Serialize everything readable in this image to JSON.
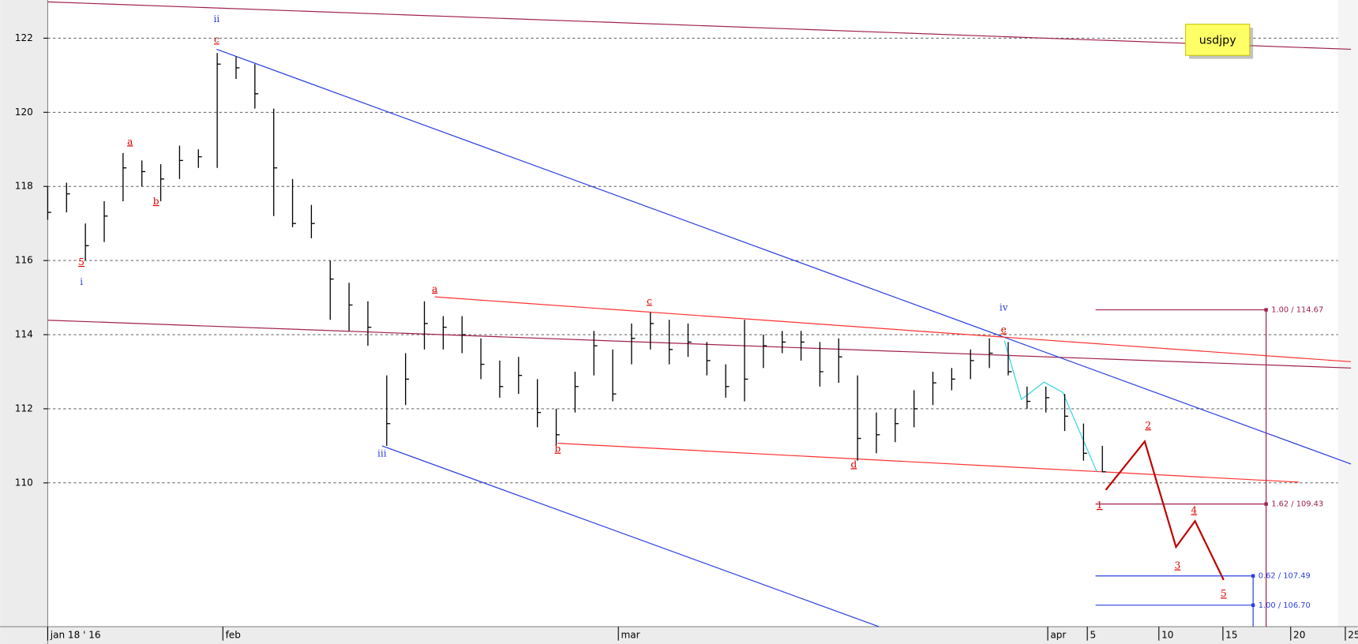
{
  "chart_data": {
    "type": "ohlc",
    "symbol": "usdjpy",
    "ylim": [
      106.12,
      123.03
    ],
    "yticks": [
      110,
      112,
      114,
      116,
      118,
      120,
      122
    ],
    "xlim": [
      0,
      69.2
    ],
    "xticks": [
      {
        "value": 0,
        "label": "jan 18 ' 16"
      },
      {
        "value": 9.3,
        "label": "feb"
      },
      {
        "value": 30.3,
        "label": "mar"
      },
      {
        "value": 53.1,
        "label": "apr"
      },
      {
        "value": 55.2,
        "label": "5"
      },
      {
        "value": 59.0,
        "label": "10"
      },
      {
        "value": 62.4,
        "label": "15"
      },
      {
        "value": 66.0,
        "label": "20"
      },
      {
        "value": 68.9,
        "label": "25"
      }
    ],
    "grid": true,
    "color": "#000000",
    "values": [
      117.3,
      117.8,
      116.4,
      117.2,
      118.5,
      118.4,
      118.2,
      118.7,
      118.8,
      121.3,
      121.2,
      120.5,
      118.5,
      117.0,
      117.0,
      115.5,
      114.8,
      114.2,
      111.6,
      112.8,
      114.3,
      114.2,
      114.0,
      113.2,
      112.6,
      112.9,
      111.9,
      111.3,
      112.6,
      113.7,
      112.4,
      113.9,
      114.3,
      113.6,
      113.8,
      113.3,
      112.6,
      112.8,
      113.7,
      113.8,
      113.8,
      113.0,
      113.4,
      111.2,
      111.3,
      111.6,
      112.0,
      112.7,
      112.8,
      113.3,
      113.5,
      113.0,
      112.2,
      112.3,
      111.8,
      110.8,
      110.3
    ],
    "high": [
      118.0,
      118.1,
      117.0,
      117.6,
      118.9,
      118.7,
      118.6,
      119.1,
      119.0,
      121.6,
      121.5,
      121.3,
      120.1,
      118.2,
      117.5,
      116.0,
      115.4,
      114.9,
      112.9,
      113.5,
      114.9,
      114.5,
      114.5,
      113.9,
      113.3,
      113.4,
      112.8,
      112.0,
      113.0,
      114.1,
      113.6,
      114.3,
      114.6,
      114.4,
      114.3,
      113.8,
      113.2,
      114.4,
      114.0,
      114.1,
      114.1,
      113.8,
      113.9,
      112.9,
      111.9,
      112.0,
      112.5,
      113.0,
      113.1,
      113.6,
      113.9,
      113.8,
      112.6,
      112.6,
      112.4,
      111.6,
      111.0
    ],
    "low": [
      117.1,
      117.3,
      116.0,
      116.5,
      117.6,
      118.0,
      117.6,
      118.2,
      118.5,
      118.5,
      120.9,
      120.1,
      117.2,
      116.9,
      116.6,
      114.4,
      114.1,
      113.7,
      111.0,
      112.1,
      113.6,
      113.6,
      113.5,
      112.8,
      112.3,
      112.4,
      111.5,
      111.0,
      111.9,
      112.9,
      112.2,
      113.2,
      113.6,
      113.2,
      113.4,
      112.9,
      112.3,
      112.2,
      113.1,
      113.5,
      113.3,
      112.6,
      112.7,
      110.6,
      110.8,
      111.1,
      111.5,
      112.1,
      112.5,
      112.8,
      113.1,
      112.9,
      112.0,
      111.9,
      111.4,
      110.6,
      110.3
    ],
    "trendlines": [
      {
        "color": "#a0204a",
        "points": [
          [
            0,
            122.98
          ],
          [
            69.2,
            121.7
          ]
        ]
      },
      {
        "color": "#a0204a",
        "points": [
          [
            0,
            114.39
          ],
          [
            69.2,
            113.1
          ]
        ]
      },
      {
        "color": "#2b3fe0",
        "points": [
          [
            8.97,
            121.7
          ],
          [
            69.2,
            110.51
          ]
        ]
      },
      {
        "color": "#2b3fe0",
        "points": [
          [
            17.75,
            111.0
          ],
          [
            44.14,
            106.12
          ]
        ]
      },
      {
        "color": "#ff3030",
        "points": [
          [
            20.55,
            115.02
          ],
          [
            69.2,
            113.27
          ]
        ]
      },
      {
        "color": "#ff3030",
        "points": [
          [
            27.08,
            111.07
          ],
          [
            66.44,
            110.02
          ]
        ]
      },
      {
        "color": "#33d6e0",
        "points": [
          [
            50.8,
            113.84
          ],
          [
            51.7,
            112.25
          ],
          [
            52.9,
            112.72
          ],
          [
            53.9,
            112.44
          ],
          [
            55.7,
            110.31
          ]
        ]
      },
      {
        "color": "#c00000",
        "points": [
          [
            56.18,
            109.81
          ],
          [
            58.25,
            111.12
          ],
          [
            59.91,
            108.27
          ],
          [
            60.92,
            108.97
          ],
          [
            62.44,
            107.38
          ]
        ]
      }
    ],
    "annotations": [
      {
        "text": "ii",
        "color": "#2b3fe0",
        "x": 8.97,
        "y": 122.51
      },
      {
        "text": "c",
        "color": "#e00000",
        "x": 8.97,
        "y": 121.95
      },
      {
        "text": "a",
        "color": "#e00000",
        "x": 4.37,
        "y": 119.2
      },
      {
        "text": "b",
        "color": "#e00000",
        "x": 5.75,
        "y": 117.59
      },
      {
        "text": "5",
        "color": "#e00000",
        "x": 1.79,
        "y": 115.95
      },
      {
        "text": "i",
        "color": "#2b3fe0",
        "x": 1.79,
        "y": 115.42
      },
      {
        "text": "iii",
        "color": "#2b3fe0",
        "x": 17.75,
        "y": 110.79
      },
      {
        "text": "a",
        "color": "#e00000",
        "x": 20.55,
        "y": 115.23
      },
      {
        "text": "b",
        "color": "#e00000",
        "x": 27.08,
        "y": 110.91
      },
      {
        "text": "c",
        "color": "#e00000",
        "x": 31.95,
        "y": 114.9
      },
      {
        "text": "d",
        "color": "#e00000",
        "x": 42.8,
        "y": 110.49
      },
      {
        "text": "iv",
        "color": "#2b3fe0",
        "x": 50.76,
        "y": 114.72
      },
      {
        "text": "e",
        "color": "#e00000",
        "x": 50.76,
        "y": 114.13
      },
      {
        "text": "1",
        "color": "#e00000",
        "x": 55.85,
        "y": 109.39
      },
      {
        "text": "2",
        "color": "#e00000",
        "x": 58.43,
        "y": 111.54
      },
      {
        "text": "3",
        "color": "#e00000",
        "x": 59.99,
        "y": 107.76
      },
      {
        "text": "4",
        "color": "#e00000",
        "x": 60.87,
        "y": 109.25
      },
      {
        "text": "5",
        "color": "#e00000",
        "x": 62.44,
        "y": 107.0
      }
    ],
    "fib_levels": [
      {
        "label": "1.00 / 114.67",
        "value": 114.67,
        "color": "#a0204a"
      },
      {
        "label": "1.62 / 109.43",
        "value": 109.43,
        "color": "#a0204a"
      },
      {
        "label": "0.62 / 107.49",
        "value": 107.49,
        "color": "#2b3fe0"
      },
      {
        "label": "1.00 / 106.70",
        "value": 106.7,
        "color": "#2b3fe0"
      }
    ]
  }
}
